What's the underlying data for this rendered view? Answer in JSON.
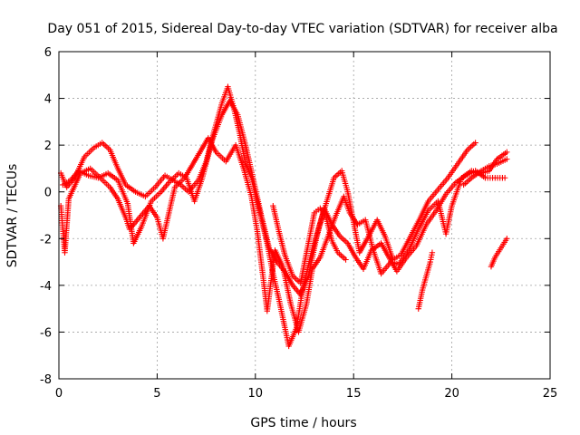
{
  "chart_data": {
    "type": "scatter",
    "title": "Day 051 of 2015, Sidereal Day-to-day VTEC variation (SDTVAR) for receiver alba",
    "xlabel": "GPS time / hours",
    "ylabel": "SDTVAR / TECUs",
    "xlim": [
      0,
      25
    ],
    "ylim": [
      -8,
      6
    ],
    "xticks": [
      "0",
      "5",
      "10",
      "15",
      "20",
      "25"
    ],
    "yticks": [
      "-8",
      "-6",
      "-4",
      "-2",
      "0",
      "2",
      "4",
      "6"
    ],
    "grid": true,
    "legend": "none",
    "marker": "+",
    "color": "#ff0000",
    "series": [
      {
        "points": [
          [
            0.1,
            0.8
          ],
          [
            0.4,
            0.2
          ],
          [
            0.8,
            0.6
          ],
          [
            1.3,
            1.5
          ],
          [
            1.8,
            1.9
          ],
          [
            2.2,
            2.1
          ],
          [
            2.6,
            1.8
          ],
          [
            3.0,
            1.0
          ],
          [
            3.4,
            0.3
          ],
          [
            3.9,
            0.0
          ],
          [
            4.4,
            -0.2
          ],
          [
            4.9,
            0.2
          ],
          [
            5.4,
            0.7
          ],
          [
            5.8,
            0.5
          ],
          [
            6.2,
            0.3
          ],
          [
            6.6,
            0.0
          ],
          [
            7.1,
            0.5
          ],
          [
            7.5,
            1.3
          ],
          [
            7.9,
            2.6
          ],
          [
            8.3,
            3.8
          ],
          [
            8.6,
            4.5
          ],
          [
            8.9,
            3.6
          ],
          [
            9.2,
            2.5
          ],
          [
            9.5,
            1.2
          ],
          [
            9.8,
            0.6
          ],
          [
            10.2,
            -0.8
          ],
          [
            10.6,
            -2.2
          ],
          [
            10.9,
            -3.5
          ],
          [
            11.2,
            -4.6
          ],
          [
            11.5,
            -5.8
          ],
          [
            11.7,
            -6.6
          ],
          [
            12.1,
            -5.8
          ],
          [
            12.4,
            -4.2
          ],
          [
            12.8,
            -2.8
          ],
          [
            13.2,
            -1.6
          ],
          [
            13.6,
            -0.5
          ],
          [
            14.0,
            0.6
          ],
          [
            14.4,
            0.9
          ],
          [
            14.7,
            0.0
          ],
          [
            15.0,
            -1.3
          ],
          [
            15.3,
            -2.6
          ],
          [
            15.7,
            -2.0
          ],
          [
            16.2,
            -1.2
          ],
          [
            16.6,
            -1.9
          ],
          [
            17.0,
            -2.9
          ],
          [
            17.4,
            -2.7
          ],
          [
            17.9,
            -1.9
          ],
          [
            18.4,
            -1.1
          ],
          [
            18.8,
            -0.4
          ],
          [
            19.3,
            0.1
          ],
          [
            19.8,
            0.6
          ],
          [
            20.3,
            1.2
          ],
          [
            20.8,
            1.8
          ],
          [
            21.2,
            2.1
          ]
        ]
      },
      {
        "points": [
          [
            0.2,
            0.3
          ],
          [
            0.6,
            0.5
          ],
          [
            1.0,
            0.9
          ],
          [
            1.5,
            0.7
          ],
          [
            2.0,
            0.6
          ],
          [
            2.5,
            0.8
          ],
          [
            3.0,
            0.5
          ],
          [
            3.5,
            -0.5
          ],
          [
            3.8,
            -2.2
          ],
          [
            4.2,
            -1.5
          ],
          [
            4.7,
            -0.4
          ],
          [
            5.2,
            0.0
          ],
          [
            5.6,
            0.4
          ],
          [
            6.1,
            0.8
          ],
          [
            6.5,
            0.6
          ],
          [
            6.9,
            -0.4
          ],
          [
            7.3,
            0.6
          ],
          [
            7.8,
            2.2
          ],
          [
            8.3,
            3.3
          ],
          [
            8.7,
            3.9
          ],
          [
            9.1,
            3.3
          ],
          [
            9.5,
            2.0
          ],
          [
            9.9,
            0.5
          ],
          [
            10.3,
            -1.0
          ],
          [
            10.7,
            -2.4
          ],
          [
            11.1,
            -3.0
          ],
          [
            11.5,
            -3.4
          ],
          [
            11.9,
            -4.0
          ],
          [
            12.3,
            -4.4
          ],
          [
            12.7,
            -3.6
          ],
          [
            13.1,
            -2.0
          ],
          [
            13.5,
            -0.7
          ],
          [
            13.9,
            -1.4
          ],
          [
            14.3,
            -1.9
          ],
          [
            14.7,
            -2.2
          ],
          [
            15.1,
            -2.8
          ],
          [
            15.5,
            -3.3
          ],
          [
            15.9,
            -2.5
          ],
          [
            16.4,
            -2.2
          ],
          [
            16.8,
            -2.8
          ],
          [
            17.2,
            -3.4
          ],
          [
            17.7,
            -2.8
          ],
          [
            18.2,
            -2.3
          ],
          [
            18.7,
            -1.4
          ],
          [
            19.2,
            -0.8
          ],
          [
            19.7,
            -0.1
          ],
          [
            20.2,
            0.4
          ],
          [
            20.7,
            0.7
          ],
          [
            21.2,
            0.9
          ],
          [
            21.7,
            0.6
          ],
          [
            22.2,
            0.6
          ],
          [
            22.7,
            0.6
          ]
        ]
      },
      {
        "points": [
          [
            0.1,
            -0.6
          ],
          [
            0.2,
            -1.6
          ],
          [
            0.3,
            -2.6
          ],
          [
            0.5,
            -0.3
          ],
          [
            1.1,
            0.8
          ],
          [
            1.6,
            1.0
          ],
          [
            2.1,
            0.6
          ],
          [
            2.6,
            0.2
          ],
          [
            3.0,
            -0.3
          ],
          [
            3.4,
            -1.1
          ],
          [
            3.6,
            -1.6
          ],
          [
            4.6,
            -0.6
          ],
          [
            5.0,
            -1.1
          ],
          [
            5.3,
            -2.0
          ],
          [
            5.9,
            0.2
          ],
          [
            6.4,
            0.6
          ],
          [
            7.6,
            2.3
          ],
          [
            8.0,
            1.7
          ],
          [
            8.5,
            1.3
          ],
          [
            9.0,
            2.0
          ],
          [
            9.4,
            1.0
          ],
          [
            9.8,
            -0.2
          ],
          [
            10.1,
            -1.7
          ],
          [
            10.4,
            -3.7
          ],
          [
            10.6,
            -5.1
          ],
          [
            11.0,
            -2.5
          ],
          [
            11.4,
            -3.2
          ],
          [
            11.8,
            -4.8
          ],
          [
            12.2,
            -6.0
          ],
          [
            12.6,
            -4.8
          ],
          [
            12.9,
            -3.3
          ],
          [
            13.3,
            -2.8
          ],
          [
            13.7,
            -1.9
          ],
          [
            14.1,
            -1.0
          ],
          [
            14.5,
            -0.2
          ],
          [
            14.8,
            -0.9
          ],
          [
            15.2,
            -1.4
          ],
          [
            15.6,
            -1.2
          ],
          [
            16.0,
            -2.5
          ],
          [
            16.4,
            -3.5
          ],
          [
            16.9,
            -3.0
          ],
          [
            17.3,
            -3.1
          ],
          [
            17.8,
            -2.5
          ],
          [
            18.3,
            -1.6
          ],
          [
            18.8,
            -0.8
          ],
          [
            19.3,
            -0.4
          ],
          [
            19.7,
            -1.8
          ],
          [
            20.0,
            -0.6
          ],
          [
            20.5,
            0.6
          ],
          [
            21.0,
            0.9
          ],
          [
            21.5,
            0.8
          ],
          [
            21.9,
            0.9
          ],
          [
            22.3,
            1.4
          ],
          [
            22.8,
            1.7
          ]
        ]
      },
      {
        "points": [
          [
            10.9,
            -0.6
          ],
          [
            11.2,
            -1.7
          ],
          [
            11.5,
            -2.7
          ],
          [
            11.9,
            -3.6
          ],
          [
            12.3,
            -3.9
          ],
          [
            12.7,
            -2.2
          ],
          [
            13.0,
            -0.9
          ],
          [
            13.3,
            -0.7
          ],
          [
            13.6,
            -1.1
          ],
          [
            13.9,
            -2.1
          ],
          [
            14.2,
            -2.6
          ],
          [
            14.6,
            -2.9
          ]
        ]
      },
      {
        "points": [
          [
            18.3,
            -5.0
          ],
          [
            18.5,
            -4.2
          ],
          [
            18.7,
            -3.6
          ],
          [
            18.9,
            -3.0
          ],
          [
            19.0,
            -2.6
          ]
        ]
      },
      {
        "points": [
          [
            22.0,
            -3.2
          ],
          [
            22.2,
            -2.8
          ],
          [
            22.5,
            -2.4
          ],
          [
            22.8,
            -2.0
          ]
        ]
      },
      {
        "points": [
          [
            20.6,
            0.3
          ],
          [
            21.0,
            0.6
          ],
          [
            21.5,
            0.9
          ],
          [
            21.9,
            1.1
          ],
          [
            22.3,
            1.2
          ],
          [
            22.8,
            1.4
          ]
        ]
      }
    ]
  }
}
